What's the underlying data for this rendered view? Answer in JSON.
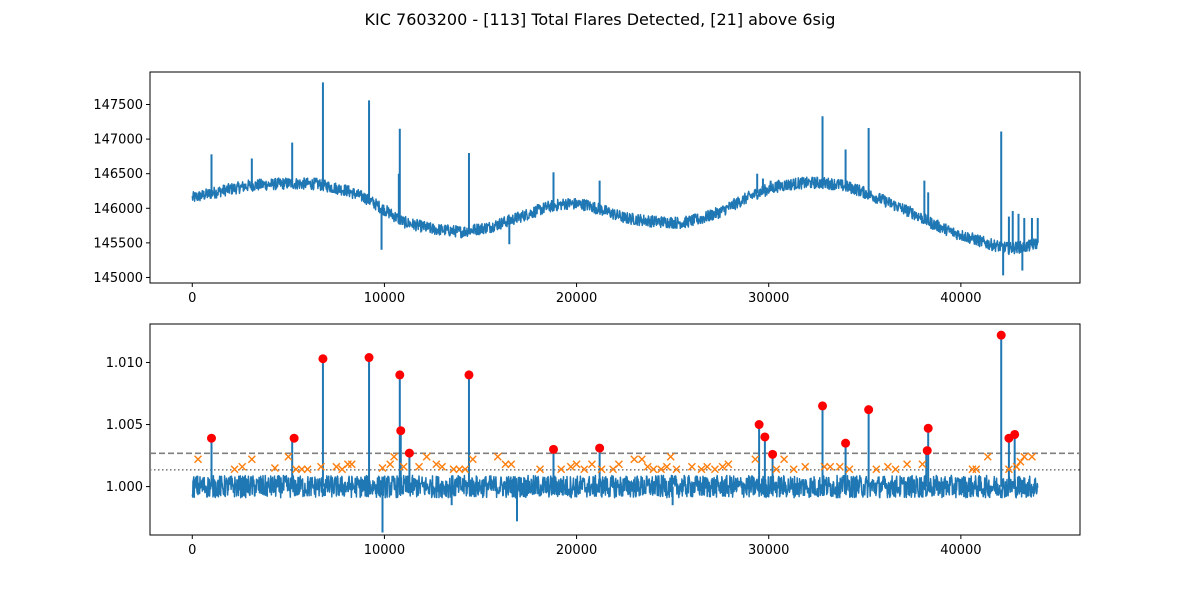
{
  "title": "KIC 7603200 - [113] Total Flares Detected, [21] above 6sig",
  "colors": {
    "series": "#1f77b4",
    "flare_marker": "#ff0000",
    "candidate_marker": "#ff7f0e",
    "threshold_line": "#7f7f7f"
  },
  "chart_data": [
    {
      "type": "line",
      "title": "",
      "xlabel": "",
      "ylabel": "",
      "xlim": [
        -2200,
        46200
      ],
      "ylim": [
        144920,
        147970
      ],
      "x_ticks": [
        0,
        10000,
        20000,
        30000,
        40000
      ],
      "y_ticks": [
        145000,
        145500,
        146000,
        146500,
        147000,
        147500
      ],
      "grid": false,
      "series": [
        {
          "baseline_knots": [
            [
              0,
              146150
            ],
            [
              1500,
              146250
            ],
            [
              3000,
              146330
            ],
            [
              5000,
              146360
            ],
            [
              6500,
              146350
            ],
            [
              8000,
              146260
            ],
            [
              9000,
              146150
            ],
            [
              10000,
              145980
            ],
            [
              11000,
              145800
            ],
            [
              12500,
              145700
            ],
            [
              14000,
              145660
            ],
            [
              15500,
              145730
            ],
            [
              17000,
              145870
            ],
            [
              18500,
              146020
            ],
            [
              19500,
              146070
            ],
            [
              20500,
              146050
            ],
            [
              21500,
              145960
            ],
            [
              22500,
              145860
            ],
            [
              24000,
              145810
            ],
            [
              25500,
              145790
            ],
            [
              26500,
              145850
            ],
            [
              27500,
              145950
            ],
            [
              28500,
              146100
            ],
            [
              29500,
              146230
            ],
            [
              30500,
              146320
            ],
            [
              31500,
              146360
            ],
            [
              32500,
              146370
            ],
            [
              33500,
              146350
            ],
            [
              34500,
              146280
            ],
            [
              35500,
              146170
            ],
            [
              36500,
              146050
            ],
            [
              37500,
              145930
            ],
            [
              38500,
              145780
            ],
            [
              39500,
              145660
            ],
            [
              40500,
              145570
            ],
            [
              41500,
              145480
            ],
            [
              42500,
              145420
            ],
            [
              43500,
              145450
            ],
            [
              44000,
              145500
            ]
          ],
          "spikes": [
            [
              6800,
              147820
            ],
            [
              9200,
              147560
            ],
            [
              10800,
              147150
            ],
            [
              14400,
              146800
            ],
            [
              5200,
              146950
            ],
            [
              1000,
              146780
            ],
            [
              3100,
              146720
            ],
            [
              10750,
              146500
            ],
            [
              18800,
              146520
            ],
            [
              21200,
              146400
            ],
            [
              29400,
              146500
            ],
            [
              29700,
              146430
            ],
            [
              30100,
              146400
            ],
            [
              32800,
              147330
            ],
            [
              34000,
              146850
            ],
            [
              35200,
              147160
            ],
            [
              38100,
              146400
            ],
            [
              38300,
              146230
            ],
            [
              42100,
              147110
            ],
            [
              42500,
              145880
            ],
            [
              42700,
              145960
            ],
            [
              43000,
              145920
            ],
            [
              43300,
              145860
            ],
            [
              43700,
              145860
            ],
            [
              44000,
              145860
            ]
          ],
          "dips": [
            [
              9850,
              145400
            ],
            [
              16500,
              145480
            ],
            [
              43200,
              145100
            ],
            [
              42200,
              145030
            ]
          ]
        }
      ]
    },
    {
      "type": "line",
      "title": "",
      "xlabel": "",
      "ylabel": "",
      "xlim": [
        -2200,
        46200
      ],
      "ylim": [
        0.9961,
        1.0131
      ],
      "x_ticks": [
        0,
        10000,
        20000,
        30000,
        40000
      ],
      "y_ticks": [
        1.0,
        1.005,
        1.01
      ],
      "grid": false,
      "threshold_dashed": 1.00268,
      "threshold_dotted": 1.00135,
      "series": [
        {
          "name": "",
          "spikes": [
            [
              1000,
              1.0039
            ],
            [
              5200,
              1.0039
            ],
            [
              6800,
              1.0103
            ],
            [
              9200,
              1.0104
            ],
            [
              10800,
              1.009
            ],
            [
              10850,
              1.0045
            ],
            [
              11300,
              1.0027
            ],
            [
              14400,
              1.009
            ],
            [
              18800,
              1.003
            ],
            [
              21200,
              1.0031
            ],
            [
              29500,
              1.005
            ],
            [
              29800,
              1.004
            ],
            [
              30200,
              1.0026
            ],
            [
              32800,
              1.0065
            ],
            [
              34000,
              1.0035
            ],
            [
              35200,
              1.0063
            ],
            [
              38300,
              1.0047
            ],
            [
              38200,
              1.0029
            ],
            [
              42100,
              1.0122
            ],
            [
              42500,
              1.0039
            ],
            [
              42800,
              1.0042
            ]
          ],
          "dips": [
            [
              9900,
              0.9963
            ],
            [
              16900,
              0.9972
            ],
            [
              13500,
              0.9985
            ],
            [
              25000,
              0.9985
            ]
          ]
        }
      ],
      "flares_6sig": [
        [
          1000,
          1.0039
        ],
        [
          5300,
          1.0039
        ],
        [
          6800,
          1.0103
        ],
        [
          9200,
          1.0104
        ],
        [
          10800,
          1.009
        ],
        [
          10850,
          1.0045
        ],
        [
          11300,
          1.0027
        ],
        [
          14400,
          1.009
        ],
        [
          18800,
          1.003
        ],
        [
          21200,
          1.0031
        ],
        [
          29500,
          1.005
        ],
        [
          29800,
          1.004
        ],
        [
          30200,
          1.0026
        ],
        [
          32800,
          1.0065
        ],
        [
          34000,
          1.0035
        ],
        [
          35200,
          1.0062
        ],
        [
          38300,
          1.0047
        ],
        [
          38250,
          1.0029
        ],
        [
          42100,
          1.0122
        ],
        [
          42500,
          1.0039
        ],
        [
          42800,
          1.0042
        ]
      ],
      "candidates": [
        [
          300,
          1.0022
        ],
        [
          2200,
          1.0014
        ],
        [
          2600,
          1.0016
        ],
        [
          3100,
          1.0022
        ],
        [
          4300,
          1.0015
        ],
        [
          5000,
          1.0024
        ],
        [
          5400,
          1.0014
        ],
        [
          5700,
          1.0014
        ],
        [
          6000,
          1.0014
        ],
        [
          6700,
          1.0016
        ],
        [
          7500,
          1.0016
        ],
        [
          7800,
          1.0014
        ],
        [
          8100,
          1.0018
        ],
        [
          8300,
          1.0018
        ],
        [
          9900,
          1.0015
        ],
        [
          10300,
          1.0018
        ],
        [
          10500,
          1.0024
        ],
        [
          11000,
          1.0016
        ],
        [
          11800,
          1.0016
        ],
        [
          12200,
          1.0024
        ],
        [
          12700,
          1.0018
        ],
        [
          13000,
          1.0016
        ],
        [
          13600,
          1.0014
        ],
        [
          13900,
          1.0014
        ],
        [
          14200,
          1.0014
        ],
        [
          14600,
          1.0022
        ],
        [
          15900,
          1.0024
        ],
        [
          16300,
          1.0018
        ],
        [
          16600,
          1.0018
        ],
        [
          18100,
          1.0014
        ],
        [
          19200,
          1.0014
        ],
        [
          19700,
          1.0016
        ],
        [
          20000,
          1.0018
        ],
        [
          20400,
          1.0014
        ],
        [
          20800,
          1.0018
        ],
        [
          21300,
          1.0014
        ],
        [
          21900,
          1.0014
        ],
        [
          22200,
          1.0018
        ],
        [
          23000,
          1.0022
        ],
        [
          23400,
          1.0022
        ],
        [
          23700,
          1.0016
        ],
        [
          24000,
          1.0014
        ],
        [
          24400,
          1.0014
        ],
        [
          24700,
          1.0016
        ],
        [
          24900,
          1.0024
        ],
        [
          25200,
          1.0014
        ],
        [
          26000,
          1.0016
        ],
        [
          26500,
          1.0014
        ],
        [
          26800,
          1.0016
        ],
        [
          27200,
          1.0014
        ],
        [
          27600,
          1.0016
        ],
        [
          27900,
          1.0018
        ],
        [
          29300,
          1.0022
        ],
        [
          30400,
          1.0014
        ],
        [
          30800,
          1.0022
        ],
        [
          31300,
          1.0014
        ],
        [
          31900,
          1.0016
        ],
        [
          32900,
          1.0016
        ],
        [
          33200,
          1.0016
        ],
        [
          33700,
          1.0016
        ],
        [
          34200,
          1.0014
        ],
        [
          35600,
          1.0014
        ],
        [
          36200,
          1.0016
        ],
        [
          36600,
          1.0014
        ],
        [
          37200,
          1.0018
        ],
        [
          38000,
          1.0018
        ],
        [
          40600,
          1.0014
        ],
        [
          40800,
          1.0014
        ],
        [
          41400,
          1.0024
        ],
        [
          42500,
          1.0014
        ],
        [
          42900,
          1.0016
        ],
        [
          43100,
          1.002
        ],
        [
          43300,
          1.0024
        ],
        [
          43700,
          1.0024
        ]
      ]
    }
  ]
}
